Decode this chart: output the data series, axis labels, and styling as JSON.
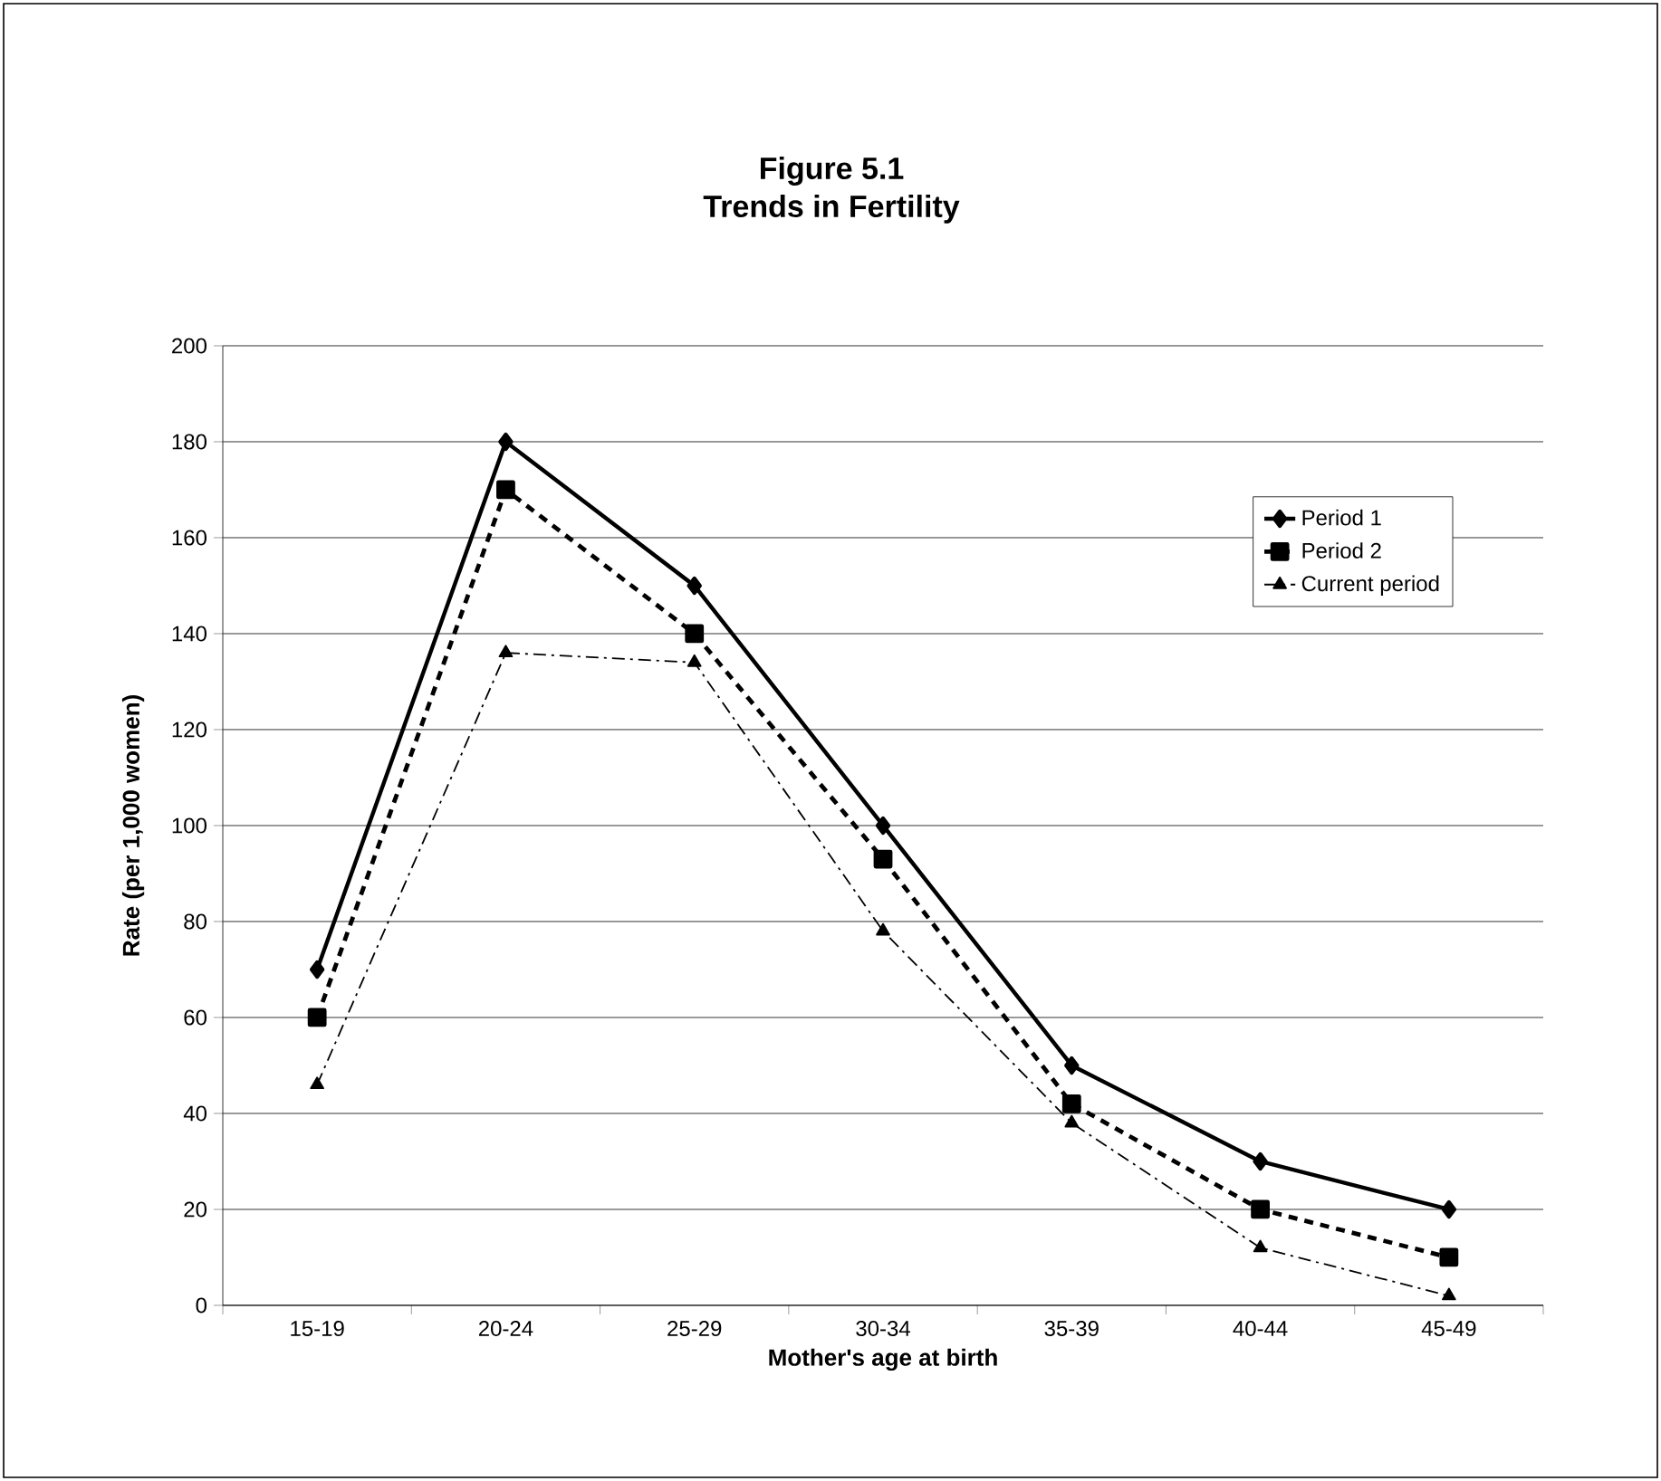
{
  "chart_data": {
    "type": "line",
    "title": "Figure 5.1",
    "subtitle": "Trends in Fertility",
    "xlabel": "Mother's age at birth",
    "ylabel": "Rate (per 1,000 women)",
    "categories": [
      "15-19",
      "20-24",
      "25-29",
      "30-34",
      "35-39",
      "40-44",
      "45-49"
    ],
    "series": [
      {
        "name": "Period 1",
        "color": "#000000",
        "marker": "diamond",
        "line_style": "solid",
        "values": [
          70,
          180,
          150,
          100,
          50,
          30,
          20
        ]
      },
      {
        "name": "Period 2",
        "color": "#000000",
        "marker": "square",
        "line_style": "dashed",
        "values": [
          60,
          170,
          140,
          93,
          42,
          20,
          10
        ]
      },
      {
        "name": "Current period",
        "color": "#000000",
        "marker": "triangle",
        "line_style": "dashdot",
        "values": [
          46,
          136,
          134,
          78,
          38,
          12,
          2
        ]
      }
    ],
    "ylim": [
      0,
      200
    ],
    "yticks": [
      0,
      20,
      40,
      60,
      80,
      100,
      120,
      140,
      160,
      180,
      200
    ],
    "grid": "y",
    "legend": "top right"
  }
}
